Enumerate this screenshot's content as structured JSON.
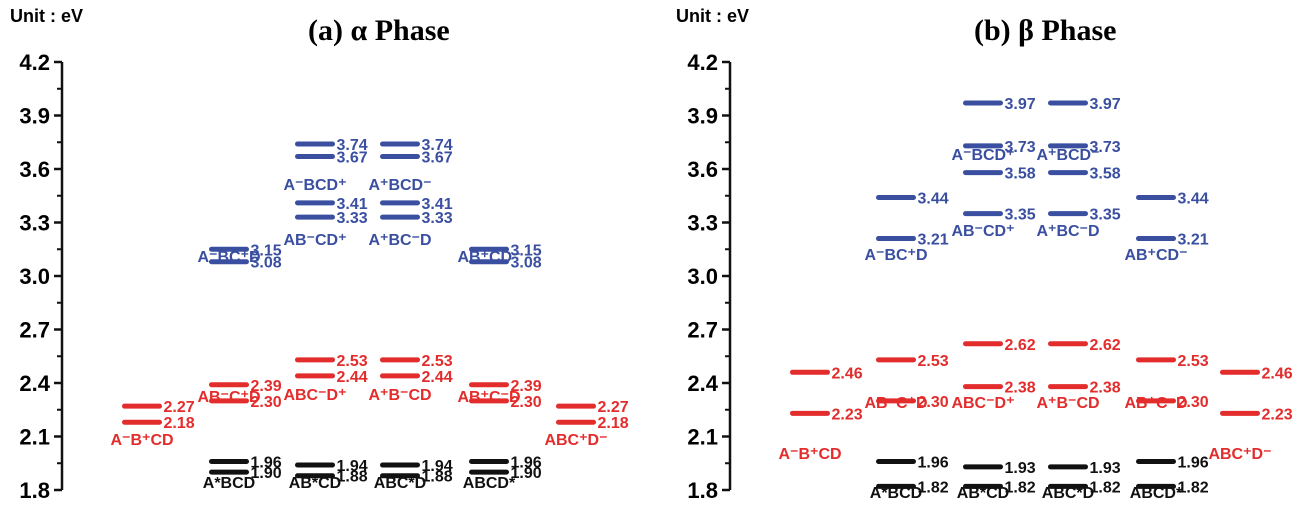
{
  "chart_data": [
    {
      "type": "energy-level-diagram",
      "title": "(a) α Phase",
      "unit_label": "Unit : eV",
      "ylim": [
        1.8,
        4.2
      ],
      "y_ticks": [
        "1.8",
        "2.1",
        "2.4",
        "2.7",
        "3.0",
        "3.3",
        "3.6",
        "3.9",
        "4.2"
      ],
      "columns": [
        {
          "levels": [
            {
              "value": 2.27,
              "text": "2.27",
              "color": "red"
            },
            {
              "value": 2.18,
              "text": "2.18",
              "color": "red"
            }
          ],
          "labels": [
            {
              "text": "A⁻B⁺CD",
              "color": "red"
            }
          ]
        },
        {
          "levels": [
            {
              "value": 3.15,
              "text": "3.15",
              "color": "blue"
            },
            {
              "value": 3.08,
              "text": "3.08",
              "color": "blue"
            },
            {
              "value": 2.39,
              "text": "2.39",
              "color": "red"
            },
            {
              "value": 2.3,
              "text": "2.30",
              "color": "red"
            },
            {
              "value": 1.96,
              "text": "1.96",
              "color": "black"
            },
            {
              "value": 1.9,
              "text": "1.90",
              "color": "black"
            }
          ],
          "labels": [
            {
              "text": "A⁻BC⁺D",
              "color": "blue"
            },
            {
              "text": "AB⁻C⁺D",
              "color": "red"
            },
            {
              "text": "A*BCD",
              "color": "black"
            }
          ]
        },
        {
          "levels": [
            {
              "value": 3.74,
              "text": "3.74",
              "color": "blue"
            },
            {
              "value": 3.67,
              "text": "3.67",
              "color": "blue"
            },
            {
              "value": 3.41,
              "text": "3.41",
              "color": "blue"
            },
            {
              "value": 3.33,
              "text": "3.33",
              "color": "blue"
            },
            {
              "value": 2.53,
              "text": "2.53",
              "color": "red"
            },
            {
              "value": 2.44,
              "text": "2.44",
              "color": "red"
            },
            {
              "value": 1.94,
              "text": "1.94",
              "color": "black"
            },
            {
              "value": 1.88,
              "text": "1.88",
              "color": "black"
            }
          ],
          "labels": [
            {
              "text": "A⁻BCD⁺",
              "color": "blue"
            },
            {
              "text": "AB⁻CD⁺",
              "color": "blue"
            },
            {
              "text": "ABC⁻D⁺",
              "color": "red"
            },
            {
              "text": "AB*CD",
              "color": "black"
            }
          ]
        },
        {
          "levels": [
            {
              "value": 3.74,
              "text": "3.74",
              "color": "blue"
            },
            {
              "value": 3.67,
              "text": "3.67",
              "color": "blue"
            },
            {
              "value": 3.41,
              "text": "3.41",
              "color": "blue"
            },
            {
              "value": 3.33,
              "text": "3.33",
              "color": "blue"
            },
            {
              "value": 2.53,
              "text": "2.53",
              "color": "red"
            },
            {
              "value": 2.44,
              "text": "2.44",
              "color": "red"
            },
            {
              "value": 1.94,
              "text": "1.94",
              "color": "black"
            },
            {
              "value": 1.88,
              "text": "1.88",
              "color": "black"
            }
          ],
          "labels": [
            {
              "text": "A⁺BCD⁻",
              "color": "blue"
            },
            {
              "text": "A⁺BC⁻D",
              "color": "blue"
            },
            {
              "text": "A⁺B⁻CD",
              "color": "red"
            },
            {
              "text": "ABC*D",
              "color": "black"
            }
          ]
        },
        {
          "levels": [
            {
              "value": 3.15,
              "text": "3.15",
              "color": "blue"
            },
            {
              "value": 3.08,
              "text": "3.08",
              "color": "blue"
            },
            {
              "value": 2.39,
              "text": "2.39",
              "color": "red"
            },
            {
              "value": 2.3,
              "text": "2.30",
              "color": "red"
            },
            {
              "value": 1.96,
              "text": "1.96",
              "color": "black"
            },
            {
              "value": 1.9,
              "text": "1.90",
              "color": "black"
            }
          ],
          "labels": [
            {
              "text": "AB⁺CD⁻",
              "color": "blue"
            },
            {
              "text": "AB⁺C⁻D",
              "color": "red"
            },
            {
              "text": "ABCD*",
              "color": "black"
            }
          ]
        },
        {
          "levels": [
            {
              "value": 2.27,
              "text": "2.27",
              "color": "red"
            },
            {
              "value": 2.18,
              "text": "2.18",
              "color": "red"
            }
          ],
          "labels": [
            {
              "text": "ABC⁺D⁻",
              "color": "red"
            }
          ]
        }
      ]
    },
    {
      "type": "energy-level-diagram",
      "title": "(b) β Phase",
      "unit_label": "Unit : eV",
      "ylim": [
        1.8,
        4.2
      ],
      "y_ticks": [
        "1.8",
        "2.1",
        "2.4",
        "2.7",
        "3.0",
        "3.3",
        "3.6",
        "3.9",
        "4.2"
      ],
      "columns": [
        {
          "levels": [
            {
              "value": 2.46,
              "text": "2.46",
              "color": "red"
            },
            {
              "value": 2.23,
              "text": "2.23",
              "color": "red"
            }
          ],
          "labels": [
            {
              "text": "A⁻B⁺CD",
              "color": "red"
            }
          ]
        },
        {
          "levels": [
            {
              "value": 3.44,
              "text": "3.44",
              "color": "blue"
            },
            {
              "value": 3.21,
              "text": "3.21",
              "color": "blue"
            },
            {
              "value": 2.53,
              "text": "2.53",
              "color": "red"
            },
            {
              "value": 2.3,
              "text": "2.30",
              "color": "red"
            },
            {
              "value": 1.96,
              "text": "1.96",
              "color": "black"
            },
            {
              "value": 1.82,
              "text": "1.82",
              "color": "black"
            }
          ],
          "labels": [
            {
              "text": "A⁻BC⁺D",
              "color": "blue"
            },
            {
              "text": "AB⁻C⁺D",
              "color": "red"
            },
            {
              "text": "A*BCD",
              "color": "black"
            }
          ]
        },
        {
          "levels": [
            {
              "value": 3.97,
              "text": "3.97",
              "color": "blue"
            },
            {
              "value": 3.73,
              "text": "3.73",
              "color": "blue"
            },
            {
              "value": 3.58,
              "text": "3.58",
              "color": "blue"
            },
            {
              "value": 3.35,
              "text": "3.35",
              "color": "blue"
            },
            {
              "value": 2.62,
              "text": "2.62",
              "color": "red"
            },
            {
              "value": 2.38,
              "text": "2.38",
              "color": "red"
            },
            {
              "value": 1.93,
              "text": "1.93",
              "color": "black"
            },
            {
              "value": 1.82,
              "text": "1.82",
              "color": "black"
            }
          ],
          "labels": [
            {
              "text": "A⁻BCD⁺",
              "color": "blue"
            },
            {
              "text": "AB⁻CD⁺",
              "color": "blue"
            },
            {
              "text": "ABC⁻D⁺",
              "color": "red"
            },
            {
              "text": "AB*CD",
              "color": "black"
            }
          ]
        },
        {
          "levels": [
            {
              "value": 3.97,
              "text": "3.97",
              "color": "blue"
            },
            {
              "value": 3.73,
              "text": "3.73",
              "color": "blue"
            },
            {
              "value": 3.58,
              "text": "3.58",
              "color": "blue"
            },
            {
              "value": 3.35,
              "text": "3.35",
              "color": "blue"
            },
            {
              "value": 2.62,
              "text": "2.62",
              "color": "red"
            },
            {
              "value": 2.38,
              "text": "2.38",
              "color": "red"
            },
            {
              "value": 1.93,
              "text": "1.93",
              "color": "black"
            },
            {
              "value": 1.82,
              "text": "1.82",
              "color": "black"
            }
          ],
          "labels": [
            {
              "text": "A⁺BCD⁻",
              "color": "blue"
            },
            {
              "text": "A⁺BC⁻D",
              "color": "blue"
            },
            {
              "text": "A⁺B⁻CD",
              "color": "red"
            },
            {
              "text": "ABC*D",
              "color": "black"
            }
          ]
        },
        {
          "levels": [
            {
              "value": 3.44,
              "text": "3.44",
              "color": "blue"
            },
            {
              "value": 3.21,
              "text": "3.21",
              "color": "blue"
            },
            {
              "value": 2.53,
              "text": "2.53",
              "color": "red"
            },
            {
              "value": 2.3,
              "text": "2.30",
              "color": "red"
            },
            {
              "value": 1.96,
              "text": "1.96",
              "color": "black"
            },
            {
              "value": 1.82,
              "text": "1.82",
              "color": "black"
            }
          ],
          "labels": [
            {
              "text": "AB⁺CD⁻",
              "color": "blue"
            },
            {
              "text": "AB⁺C⁻D",
              "color": "red"
            },
            {
              "text": "ABCD*",
              "color": "black"
            }
          ]
        },
        {
          "levels": [
            {
              "value": 2.46,
              "text": "2.46",
              "color": "red"
            },
            {
              "value": 2.23,
              "text": "2.23",
              "color": "red"
            }
          ],
          "labels": [
            {
              "text": "ABC⁺D⁻",
              "color": "red"
            }
          ]
        }
      ]
    }
  ],
  "colors": {
    "blue": "#3a4fa0",
    "red": "#e32c2c",
    "black": "#111111",
    "axis": "#111111"
  }
}
